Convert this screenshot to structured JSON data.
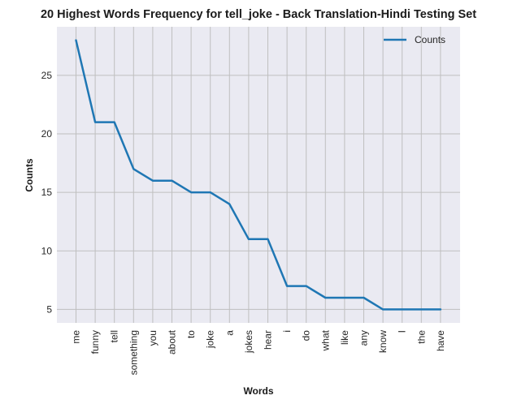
{
  "chart_data": {
    "type": "line",
    "title": "20 Highest Words Frequency for tell_joke - Back Translation-Hindi Testing Set",
    "xlabel": "Words",
    "ylabel": "Counts",
    "categories": [
      "me",
      "funny",
      "tell",
      "something",
      "you",
      "about",
      "to",
      "joke",
      "a",
      "jokes",
      "hear",
      "i",
      "do",
      "what",
      "like",
      "any",
      "know",
      "I",
      "the",
      "have"
    ],
    "series": [
      {
        "name": "Counts",
        "values": [
          28,
          21,
          21,
          17,
          16,
          16,
          15,
          15,
          14,
          11,
          11,
          7,
          7,
          6,
          6,
          6,
          5,
          5,
          5,
          5
        ]
      }
    ],
    "ylim": [
      3.85,
      29.15
    ],
    "yticks": [
      5,
      10,
      15,
      20,
      25
    ],
    "grid": true,
    "legend": "top-right",
    "colors": {
      "line": "#1f77b4",
      "background": "#eaeaf2",
      "grid": "#bfbfbf"
    }
  }
}
